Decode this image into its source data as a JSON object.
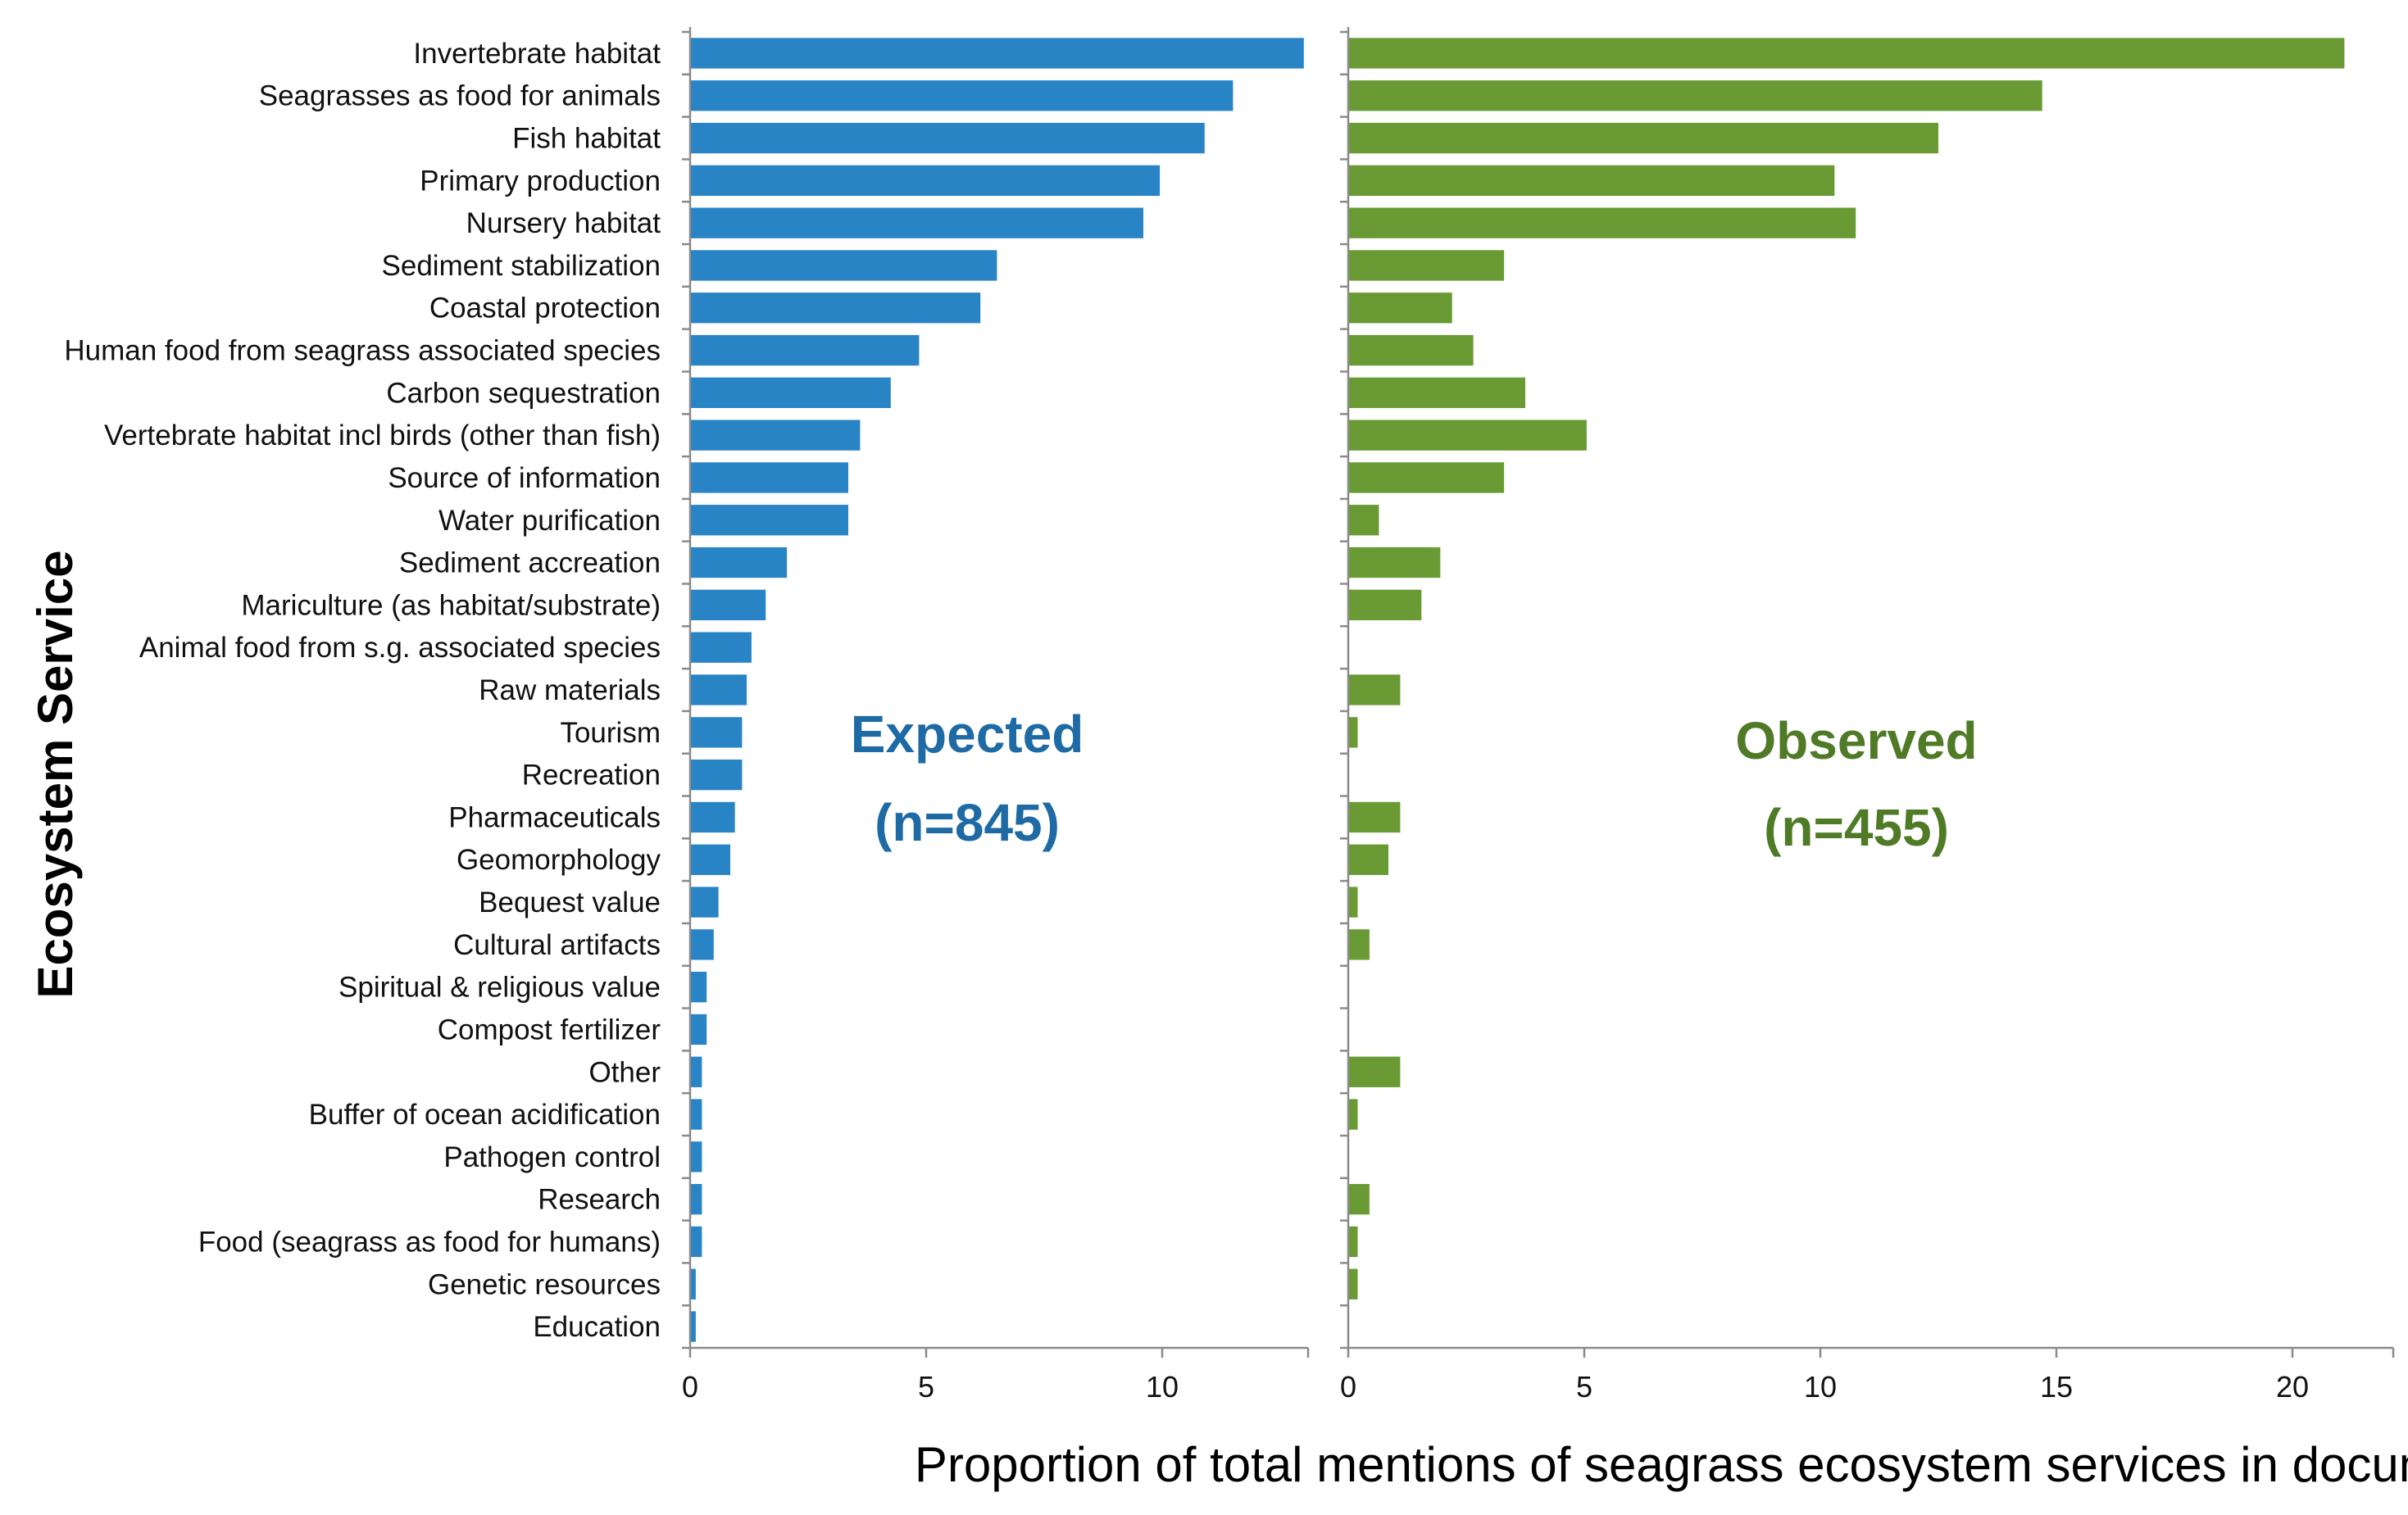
{
  "chart_data": {
    "type": "bar",
    "orientation": "horizontal",
    "xlabel": "Proportion of total mentions of seagrass ecosystem services in documents (%)",
    "ylabel": "Ecosystem Service",
    "colors": {
      "expected": "#2984c6",
      "observed": "#6a9a34",
      "expected_title": "#1d6aa5",
      "observed_title": "#4f7a26"
    },
    "categories": [
      "Invertebrate habitat",
      "Seagrasses as food for animals",
      "Fish habitat",
      "Primary production",
      "Nursery habitat",
      "Sediment stabilization",
      "Coastal protection",
      "Human food from seagrass associated species",
      "Carbon sequestration",
      "Vertebrate habitat incl birds (other than fish)",
      "Source of information",
      "Water purification",
      "Sediment accreation",
      "Mariculture (as habitat/substrate)",
      "Animal food from s.g. associated species",
      "Raw materials",
      "Tourism",
      "Recreation",
      "Pharmaceuticals",
      "Geomorphology",
      "Bequest value",
      "Cultural artifacts",
      "Spiritual & religious value",
      "Compost fertilizer",
      "Other",
      "Buffer of ocean acidification",
      "Pathogen control",
      "Research",
      "Food (seagrass as food for humans)",
      "Genetic resources",
      "Education"
    ],
    "series": [
      {
        "name": "Expected",
        "title_line1": "Expected",
        "title_line2": "(n=845)",
        "xlim": [
          0,
          13
        ],
        "ticks": [
          "0",
          "5",
          "10"
        ],
        "tick_values": [
          0,
          5,
          10
        ],
        "values": [
          13.0,
          11.5,
          10.9,
          9.95,
          9.6,
          6.5,
          6.15,
          4.85,
          4.25,
          3.6,
          3.35,
          3.35,
          2.05,
          1.6,
          1.3,
          1.2,
          1.1,
          1.1,
          0.95,
          0.85,
          0.6,
          0.5,
          0.35,
          0.35,
          0.25,
          0.25,
          0.25,
          0.25,
          0.25,
          0.12,
          0.12
        ]
      },
      {
        "name": "Observed",
        "title_line1": "Observed",
        "title_line2": "(n=455)",
        "xlim": [
          0,
          22
        ],
        "ticks": [
          "0",
          "5",
          "10",
          "15",
          "20"
        ],
        "tick_values": [
          0,
          5,
          10,
          15,
          20
        ],
        "values": [
          21.1,
          14.7,
          12.5,
          10.3,
          10.75,
          3.3,
          2.2,
          2.65,
          3.75,
          5.05,
          3.3,
          0.65,
          1.95,
          1.55,
          0,
          1.1,
          0.2,
          0,
          1.1,
          0.85,
          0.2,
          0.45,
          0,
          0,
          1.1,
          0.2,
          0,
          0.45,
          0.2,
          0.2,
          0
        ]
      }
    ]
  }
}
